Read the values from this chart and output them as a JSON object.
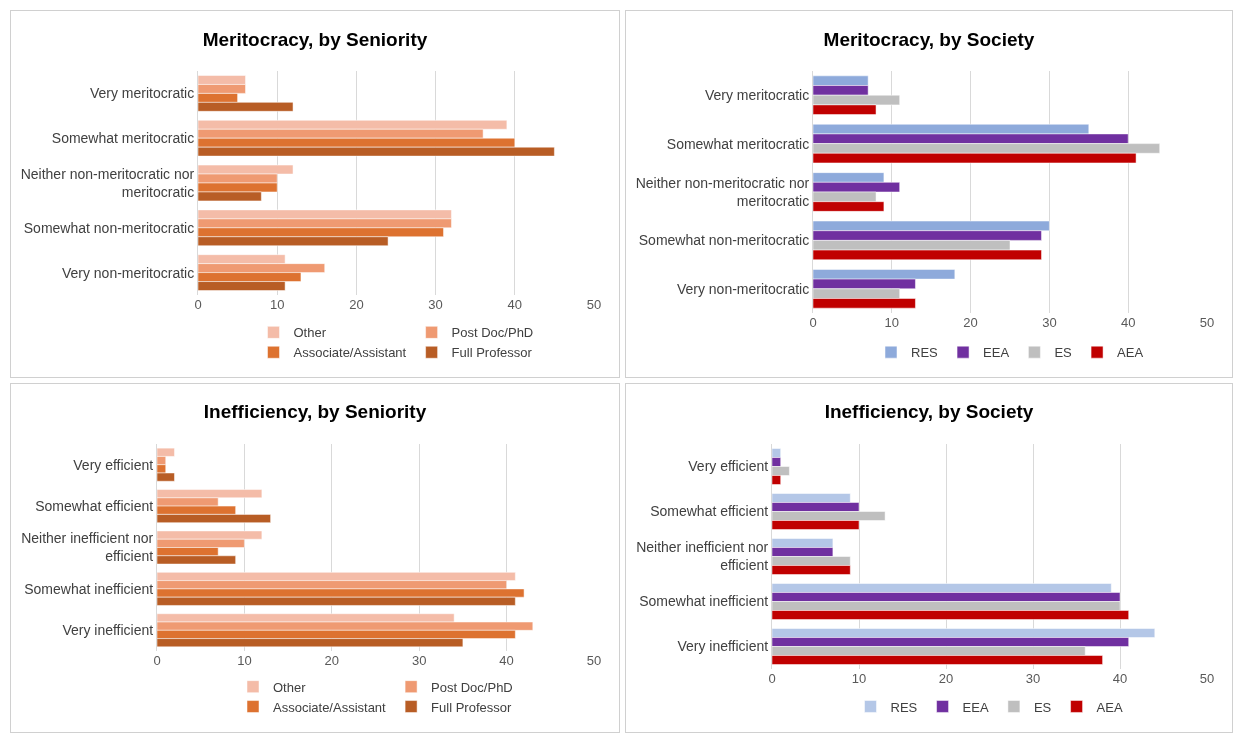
{
  "chart_data": [
    {
      "type": "bar",
      "title": "Meritocracy, by Seniority",
      "orientation": "horizontal",
      "categories": [
        "Very meritocratic",
        "Somewhat meritocratic",
        "Neither non-meritocratic nor meritocratic",
        "Somewhat non-meritocratic",
        "Very non-meritocratic"
      ],
      "xlim": [
        0,
        50
      ],
      "xticks": [
        0,
        10,
        20,
        30,
        40,
        50
      ],
      "grid": "x",
      "legend": "bottom",
      "series": [
        {
          "name": "Other",
          "color": "#f4bca8",
          "values": [
            6,
            39,
            12,
            32,
            11
          ]
        },
        {
          "name": "Post Doc/PhD",
          "color": "#ef9a72",
          "values": [
            6,
            36,
            10,
            32,
            16
          ]
        },
        {
          "name": "Associate/Assistant",
          "color": "#dd7230",
          "values": [
            5,
            40,
            10,
            31,
            13
          ]
        },
        {
          "name": "Full Professor",
          "color": "#b85d25",
          "values": [
            12,
            45,
            8,
            24,
            11
          ]
        }
      ]
    },
    {
      "type": "bar",
      "title": "Meritocracy, by Society",
      "orientation": "horizontal",
      "categories": [
        "Very meritocratic",
        "Somewhat meritocratic",
        "Neither non-meritocratic nor meritocratic",
        "Somewhat non-meritocratic",
        "Very non-meritocratic"
      ],
      "xlim": [
        0,
        50
      ],
      "xticks": [
        0,
        10,
        20,
        30,
        40,
        50
      ],
      "grid": "x",
      "legend": "bottom",
      "series": [
        {
          "name": "RES",
          "color": "#8eaadb",
          "values": [
            7,
            35,
            9,
            30,
            18
          ]
        },
        {
          "name": "EEA",
          "color": "#7030a0",
          "values": [
            7,
            40,
            11,
            29,
            13
          ]
        },
        {
          "name": "ES",
          "color": "#bfbfbf",
          "values": [
            11,
            44,
            8,
            25,
            11
          ]
        },
        {
          "name": "AEA",
          "color": "#c00000",
          "values": [
            8,
            41,
            9,
            29,
            13
          ]
        }
      ]
    },
    {
      "type": "bar",
      "title": "Inefficiency, by Seniority",
      "orientation": "horizontal",
      "categories": [
        "Very efficient",
        "Somewhat efficient",
        "Neither inefficient nor efficient",
        "Somewhat inefficient",
        "Very inefficient"
      ],
      "xlim": [
        0,
        50
      ],
      "xticks": [
        0,
        10,
        20,
        30,
        40,
        50
      ],
      "grid": "x",
      "legend": "bottom",
      "series": [
        {
          "name": "Other",
          "color": "#f4bca8",
          "values": [
            2,
            12,
            12,
            41,
            34
          ]
        },
        {
          "name": "Post Doc/PhD",
          "color": "#ef9a72",
          "values": [
            1,
            7,
            10,
            40,
            43
          ]
        },
        {
          "name": "Associate/Assistant",
          "color": "#dd7230",
          "values": [
            1,
            9,
            7,
            42,
            41
          ]
        },
        {
          "name": "Full Professor",
          "color": "#b85d25",
          "values": [
            2,
            13,
            9,
            41,
            35
          ]
        }
      ]
    },
    {
      "type": "bar",
      "title": "Inefficiency, by Society",
      "orientation": "horizontal",
      "categories": [
        "Very efficient",
        "Somewhat efficient",
        "Neither inefficient nor efficient",
        "Somewhat inefficient",
        "Very inefficient"
      ],
      "xlim": [
        0,
        50
      ],
      "xticks": [
        0,
        10,
        20,
        30,
        40,
        50
      ],
      "grid": "x",
      "legend": "bottom",
      "series": [
        {
          "name": "RES",
          "color": "#b4c7e7",
          "values": [
            1,
            9,
            7,
            39,
            44
          ]
        },
        {
          "name": "EEA",
          "color": "#7030a0",
          "values": [
            1,
            10,
            7,
            40,
            41
          ]
        },
        {
          "name": "ES",
          "color": "#bfbfbf",
          "values": [
            2,
            13,
            9,
            40,
            36
          ]
        },
        {
          "name": "AEA",
          "color": "#c00000",
          "values": [
            1,
            10,
            9,
            41,
            38
          ]
        }
      ]
    }
  ]
}
